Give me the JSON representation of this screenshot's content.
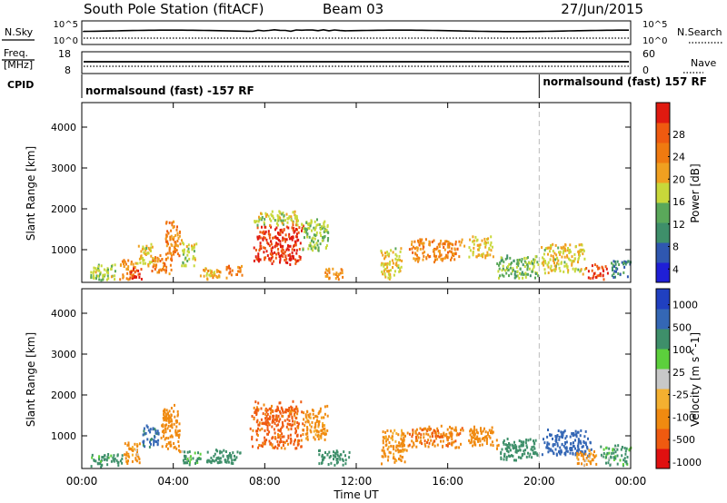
{
  "header": {
    "title": "South Pole Station (fitACF)",
    "beam": "Beam 03",
    "date": "27/Jun/2015"
  },
  "noise_panel": {
    "left_label": "N.Sky",
    "right_label": "N.Search",
    "left_ticks": [
      "10^5",
      "10^0"
    ],
    "right_ticks": [
      "10^5",
      "10^0"
    ]
  },
  "freq_panel": {
    "left_label_1": "Freq.",
    "left_label_2": "[MHz]",
    "right_label": "Nave",
    "left_ticks": [
      "18",
      "8"
    ],
    "right_ticks": [
      "60",
      "0"
    ]
  },
  "cpid_panel": {
    "label": "CPID",
    "segments": [
      {
        "text": "normalsound (fast) -157 RF",
        "start_hour": 0
      },
      {
        "text": "normalsound (fast) 157 RF",
        "start_hour": 20.0
      }
    ]
  },
  "time_axis": {
    "label": "Time UT",
    "tick_labels": [
      "00:00",
      "04:00",
      "08:00",
      "12:00",
      "16:00",
      "20:00",
      "00:00"
    ],
    "tick_hours": [
      0,
      4,
      8,
      12,
      16,
      20,
      24
    ]
  },
  "colors": {
    "power_scale": [
      "#1f1fd6",
      "#2f57b0",
      "#3e8f6a",
      "#5aa85a",
      "#c8d83a",
      "#f0a020",
      "#f07a10",
      "#ef5a10",
      "#e01a10"
    ],
    "velocity_scale": [
      "#e01010",
      "#ef5a10",
      "#f08a10",
      "#f4b030",
      "#c8c8c8",
      "#5ccf3c",
      "#3e8f6a",
      "#3467b5",
      "#2040c0"
    ]
  },
  "chart_data": [
    {
      "type": "heatmap",
      "name": "power",
      "ylabel": "Slant Range [km]",
      "y_ticks": [
        "1000",
        "2000",
        "3000",
        "4000"
      ],
      "ylim": [
        200,
        4600
      ],
      "xlim_hours": [
        0,
        24
      ],
      "colorbar_label": "Power [dB]",
      "colorbar_ticks": [
        "28",
        "24",
        "20",
        "16",
        "12",
        "8",
        "4"
      ],
      "colorbar_range": [
        0,
        30
      ],
      "blobs": [
        {
          "t0": 0.2,
          "t1": 1.5,
          "r0": 250,
          "r1": 700,
          "v": 14
        },
        {
          "t0": 1.6,
          "t1": 2.4,
          "r0": 250,
          "r1": 800,
          "v": 20
        },
        {
          "t0": 2.0,
          "t1": 2.6,
          "r0": 300,
          "r1": 600,
          "v": 27
        },
        {
          "t0": 2.4,
          "t1": 3.2,
          "r0": 600,
          "r1": 1200,
          "v": 16
        },
        {
          "t0": 3.0,
          "t1": 4.0,
          "r0": 400,
          "r1": 900,
          "v": 22
        },
        {
          "t0": 3.6,
          "t1": 4.3,
          "r0": 800,
          "r1": 1800,
          "v": 21
        },
        {
          "t0": 4.3,
          "t1": 5.0,
          "r0": 600,
          "r1": 1300,
          "v": 15
        },
        {
          "t0": 5.0,
          "t1": 6.2,
          "r0": 300,
          "r1": 600,
          "v": 18
        },
        {
          "t0": 6.2,
          "t1": 7.0,
          "r0": 300,
          "r1": 650,
          "v": 22
        },
        {
          "t0": 7.4,
          "t1": 9.7,
          "r0": 650,
          "r1": 1700,
          "v": 27
        },
        {
          "t0": 7.4,
          "t1": 9.7,
          "r0": 1600,
          "r1": 2000,
          "v": 15
        },
        {
          "t0": 9.6,
          "t1": 10.8,
          "r0": 900,
          "r1": 1800,
          "v": 13
        },
        {
          "t0": 10.5,
          "t1": 11.5,
          "r0": 300,
          "r1": 600,
          "v": 20
        },
        {
          "t0": 13.0,
          "t1": 14.0,
          "r0": 300,
          "r1": 1100,
          "v": 16
        },
        {
          "t0": 14.2,
          "t1": 16.8,
          "r0": 700,
          "r1": 1300,
          "v": 21
        },
        {
          "t0": 16.8,
          "t1": 18.0,
          "r0": 800,
          "r1": 1400,
          "v": 17
        },
        {
          "t0": 18.0,
          "t1": 20.0,
          "r0": 300,
          "r1": 900,
          "v": 12
        },
        {
          "t0": 20.0,
          "t1": 22.0,
          "r0": 400,
          "r1": 1200,
          "v": 16
        },
        {
          "t0": 22.0,
          "t1": 23.0,
          "r0": 300,
          "r1": 700,
          "v": 26
        },
        {
          "t0": 23.0,
          "t1": 24.0,
          "r0": 300,
          "r1": 800,
          "v": 8
        }
      ]
    },
    {
      "type": "heatmap",
      "name": "velocity",
      "ylabel": "Slant Range [km]",
      "y_ticks": [
        "1000",
        "2000",
        "3000",
        "4000"
      ],
      "ylim": [
        200,
        4600
      ],
      "xlim_hours": [
        0,
        24
      ],
      "colorbar_label": "Velocity [m s^-1]",
      "colorbar_ticks": [
        "1000",
        "500",
        "100",
        "25",
        "-25",
        "-100",
        "-500",
        "-1000"
      ],
      "colorbar_range": [
        -1000,
        1000
      ],
      "blobs": [
        {
          "t0": 0.3,
          "t1": 1.8,
          "r0": 250,
          "r1": 600,
          "v": 200
        },
        {
          "t0": 1.8,
          "t1": 2.6,
          "r0": 300,
          "r1": 900,
          "v": -150
        },
        {
          "t0": 2.6,
          "t1": 3.4,
          "r0": 700,
          "r1": 1300,
          "v": 600
        },
        {
          "t0": 3.4,
          "t1": 4.3,
          "r0": 600,
          "r1": 1800,
          "v": -300
        },
        {
          "t0": 4.3,
          "t1": 5.2,
          "r0": 300,
          "r1": 700,
          "v": 150
        },
        {
          "t0": 5.2,
          "t1": 7.0,
          "r0": 300,
          "r1": 700,
          "v": 300
        },
        {
          "t0": 7.3,
          "t1": 9.7,
          "r0": 650,
          "r1": 1900,
          "v": -600
        },
        {
          "t0": 9.6,
          "t1": 10.8,
          "r0": 900,
          "r1": 1800,
          "v": -200
        },
        {
          "t0": 10.2,
          "t1": 11.7,
          "r0": 300,
          "r1": 700,
          "v": 300
        },
        {
          "t0": 13.0,
          "t1": 14.2,
          "r0": 300,
          "r1": 1200,
          "v": -200
        },
        {
          "t0": 14.2,
          "t1": 16.8,
          "r0": 700,
          "r1": 1300,
          "v": -450
        },
        {
          "t0": 16.8,
          "t1": 18.2,
          "r0": 700,
          "r1": 1300,
          "v": -250
        },
        {
          "t0": 18.2,
          "t1": 20.0,
          "r0": 400,
          "r1": 1000,
          "v": 300
        },
        {
          "t0": 20.0,
          "t1": 22.3,
          "r0": 500,
          "r1": 1200,
          "v": 700
        },
        {
          "t0": 21.5,
          "t1": 22.6,
          "r0": 300,
          "r1": 700,
          "v": -150
        },
        {
          "t0": 22.6,
          "t1": 24.0,
          "r0": 300,
          "r1": 800,
          "v": 150
        }
      ]
    }
  ]
}
